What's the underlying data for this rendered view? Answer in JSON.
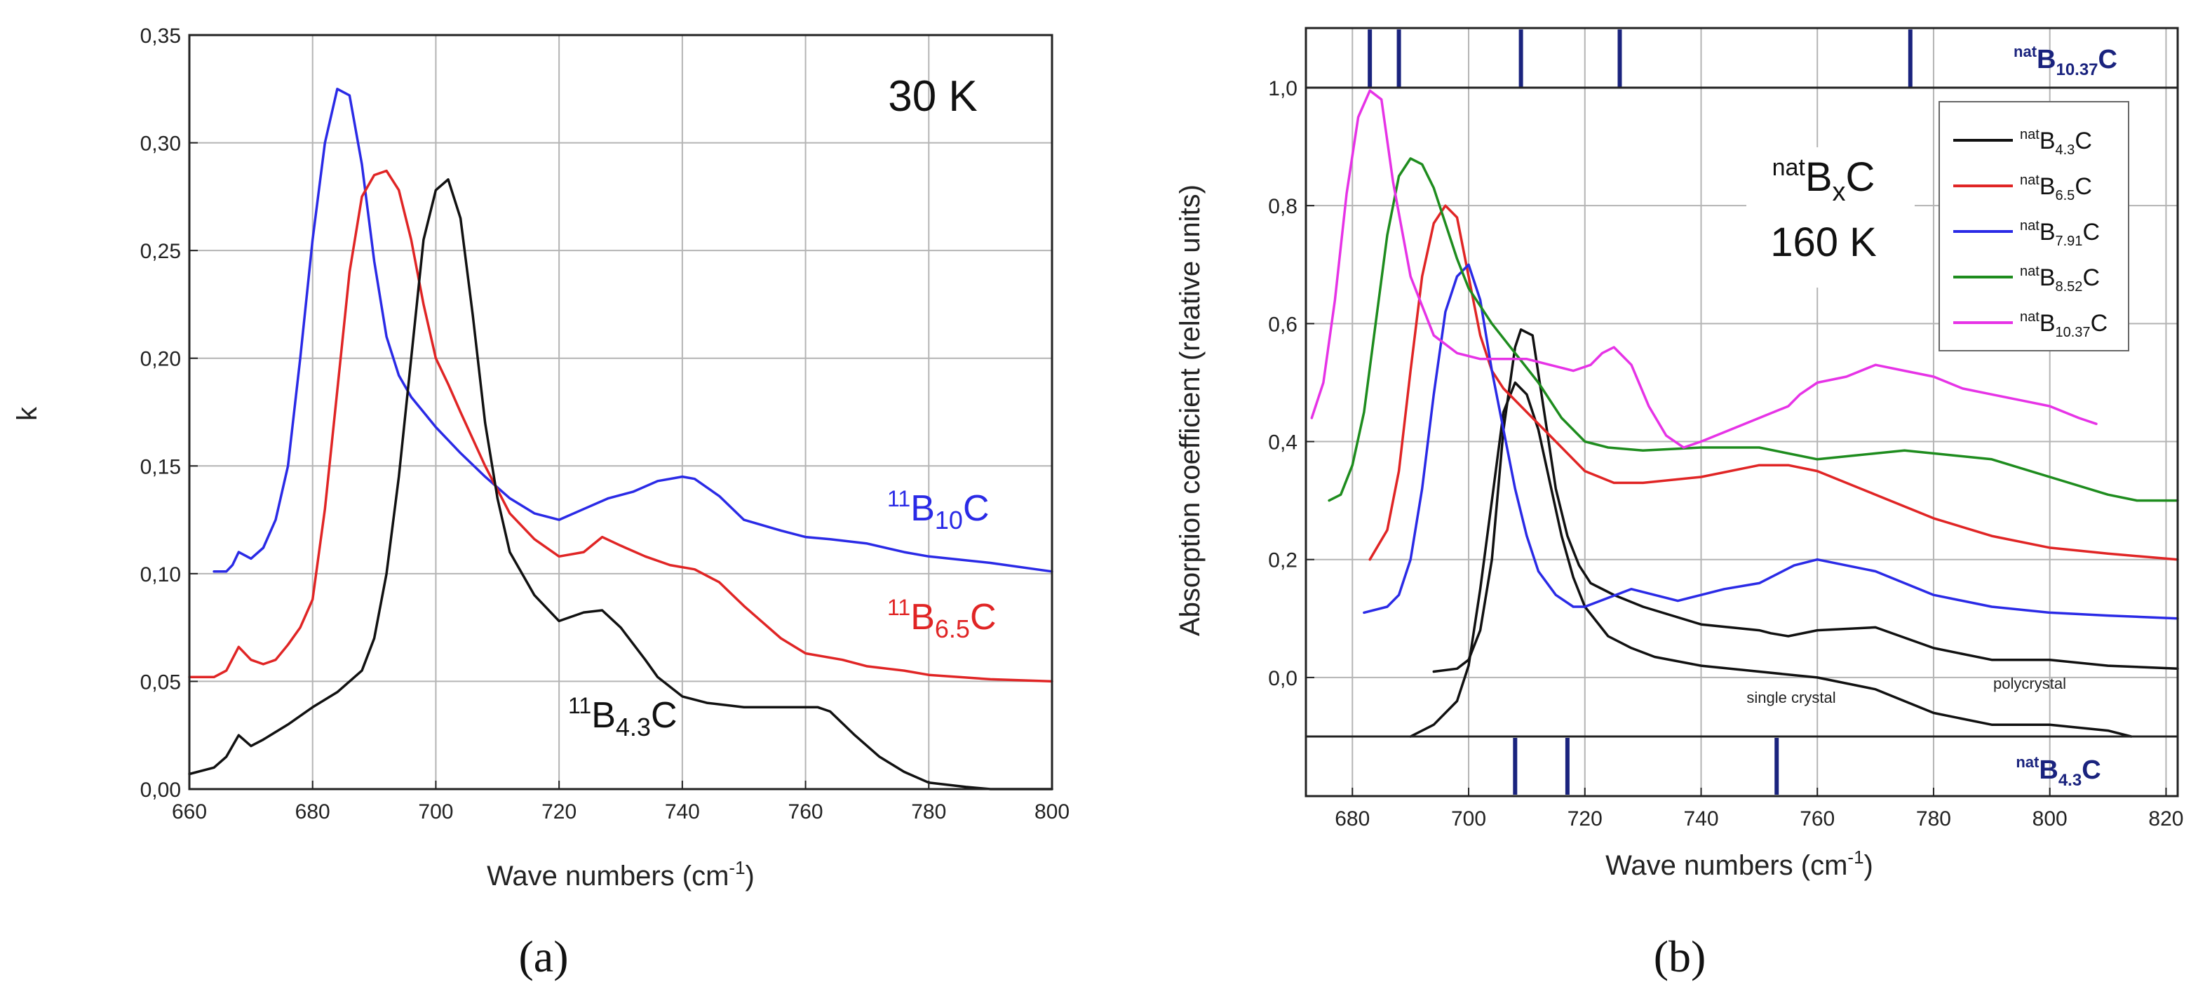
{
  "chart_data": [
    {
      "type": "line",
      "panel_label": "(a)",
      "annotation": "30 K",
      "xlabel": {
        "text": "Wave numbers (cm",
        "sup": "-1",
        "tail": ")"
      },
      "ylabel": "k",
      "xlim": [
        660,
        800
      ],
      "ylim": [
        0,
        0.35
      ],
      "xticks": [
        "660",
        "680",
        "700",
        "720",
        "740",
        "760",
        "780",
        "800"
      ],
      "yticks": [
        "0,00",
        "0,05",
        "0,10",
        "0,15",
        "0,20",
        "0,25",
        "0,30",
        "0,35"
      ],
      "grid": true,
      "series": [
        {
          "id": "b10c",
          "color": "#2a2ae6",
          "label": {
            "sup": "11",
            "base": "B",
            "sub": "10",
            "tail": "C"
          },
          "x": [
            664,
            666,
            667,
            668,
            670,
            672,
            674,
            676,
            678,
            680,
            682,
            684,
            686,
            688,
            690,
            692,
            694,
            696,
            698,
            700,
            704,
            708,
            712,
            716,
            720,
            724,
            728,
            732,
            736,
            740,
            742,
            746,
            750,
            756,
            760,
            764,
            770,
            776,
            780,
            790,
            800
          ],
          "y": [
            0.101,
            0.101,
            0.104,
            0.11,
            0.107,
            0.112,
            0.125,
            0.15,
            0.2,
            0.255,
            0.3,
            0.325,
            0.322,
            0.29,
            0.245,
            0.21,
            0.192,
            0.182,
            0.175,
            0.168,
            0.156,
            0.145,
            0.135,
            0.128,
            0.125,
            0.13,
            0.135,
            0.138,
            0.143,
            0.145,
            0.144,
            0.136,
            0.125,
            0.12,
            0.117,
            0.116,
            0.114,
            0.11,
            0.108,
            0.105,
            0.101
          ]
        },
        {
          "id": "b65c",
          "color": "#e02525",
          "label": {
            "sup": "11",
            "base": "B",
            "sub": "6.5",
            "tail": "C"
          },
          "x": [
            660,
            664,
            666,
            668,
            670,
            672,
            674,
            676,
            678,
            680,
            682,
            684,
            686,
            688,
            690,
            692,
            694,
            696,
            698,
            700,
            702,
            704,
            708,
            712,
            716,
            720,
            724,
            727,
            730,
            734,
            738,
            742,
            746,
            750,
            756,
            760,
            766,
            770,
            776,
            780,
            790,
            800
          ],
          "y": [
            0.052,
            0.052,
            0.055,
            0.066,
            0.06,
            0.058,
            0.06,
            0.067,
            0.075,
            0.088,
            0.13,
            0.185,
            0.24,
            0.275,
            0.285,
            0.287,
            0.278,
            0.255,
            0.225,
            0.2,
            0.188,
            0.175,
            0.15,
            0.128,
            0.116,
            0.108,
            0.11,
            0.117,
            0.113,
            0.108,
            0.104,
            0.102,
            0.096,
            0.085,
            0.07,
            0.063,
            0.06,
            0.057,
            0.055,
            0.053,
            0.051,
            0.05
          ]
        },
        {
          "id": "b43c",
          "color": "#111111",
          "label": {
            "sup": "11",
            "base": "B",
            "sub": "4.3",
            "tail": "C"
          },
          "x": [
            660,
            664,
            666,
            668,
            670,
            672,
            676,
            680,
            684,
            688,
            690,
            692,
            694,
            696,
            698,
            700,
            702,
            704,
            706,
            708,
            710,
            712,
            716,
            720,
            724,
            727,
            730,
            734,
            736,
            740,
            744,
            750,
            756,
            762,
            764,
            768,
            772,
            776,
            780,
            786,
            790,
            796,
            800
          ],
          "y": [
            0.007,
            0.01,
            0.015,
            0.025,
            0.02,
            0.023,
            0.03,
            0.038,
            0.045,
            0.055,
            0.07,
            0.1,
            0.145,
            0.2,
            0.255,
            0.278,
            0.283,
            0.265,
            0.22,
            0.17,
            0.135,
            0.11,
            0.09,
            0.078,
            0.082,
            0.083,
            0.075,
            0.06,
            0.052,
            0.043,
            0.04,
            0.038,
            0.038,
            0.038,
            0.036,
            0.025,
            0.015,
            0.008,
            0.003,
            0.001,
            0.0,
            0.0,
            0.0
          ]
        }
      ]
    },
    {
      "type": "line",
      "panel_label": "(b)",
      "annotation_line1": {
        "sup": "nat",
        "base": "B",
        "sub": "x",
        "tail": "C"
      },
      "annotation_line2": "160 K",
      "xlabel": {
        "text": "Wave numbers (cm",
        "sup": "-1",
        "tail": ")"
      },
      "ylabel": "Absorption coefficient (relative units)",
      "xlim": [
        672,
        822
      ],
      "ylim": [
        -0.1,
        1.0
      ],
      "xticks": [
        "680",
        "700",
        "720",
        "740",
        "760",
        "780",
        "800",
        "820"
      ],
      "yticks": [
        "0,0",
        "0,2",
        "0,4",
        "0,6",
        "0,8",
        "1,0"
      ],
      "grid": true,
      "legend_position": "top-right",
      "top_strip": {
        "label": {
          "sup": "nat",
          "base": "B",
          "sub": "10.37",
          "tail": "C"
        },
        "lines_x": [
          683,
          688,
          709,
          726,
          776
        ]
      },
      "bottom_strip": {
        "label": {
          "sup": "nat",
          "base": "B",
          "sub": "4.3",
          "tail": "C"
        },
        "lines_x": [
          708,
          717,
          753
        ]
      },
      "curve_annotations": [
        {
          "text": "single crystal",
          "x": 745,
          "y": -0.04
        },
        {
          "text": "polycrystal",
          "x": 790,
          "y": -0.02
        }
      ],
      "series": [
        {
          "id": "nb43c",
          "color": "#111111",
          "label": {
            "sup": "nat",
            "base": "B",
            "sub": "4.3",
            "tail": "C"
          },
          "x": [
            694,
            698,
            700,
            702,
            704,
            706,
            708,
            709,
            711,
            713,
            715,
            717,
            719,
            721,
            725,
            730,
            740,
            750,
            752,
            755,
            760,
            770,
            780,
            790,
            800,
            810,
            822
          ],
          "y": [
            0.01,
            0.015,
            0.03,
            0.08,
            0.2,
            0.42,
            0.56,
            0.59,
            0.58,
            0.45,
            0.32,
            0.24,
            0.19,
            0.16,
            0.14,
            0.12,
            0.09,
            0.08,
            0.075,
            0.07,
            0.08,
            0.085,
            0.05,
            0.03,
            0.03,
            0.02,
            0.015
          ]
        },
        {
          "id": "nb43c_sc",
          "color": "#111111",
          "legend": false,
          "x": [
            690,
            694,
            698,
            700,
            702,
            704,
            706,
            708,
            710,
            712,
            714,
            716,
            718,
            720,
            724,
            728,
            732,
            740,
            750,
            760,
            770,
            780,
            790,
            800,
            810,
            814
          ],
          "y": [
            -0.1,
            -0.08,
            -0.04,
            0.02,
            0.15,
            0.3,
            0.45,
            0.5,
            0.48,
            0.42,
            0.33,
            0.24,
            0.17,
            0.12,
            0.07,
            0.05,
            0.035,
            0.02,
            0.01,
            0.0,
            -0.02,
            -0.06,
            -0.08,
            -0.08,
            -0.09,
            -0.1
          ]
        },
        {
          "id": "nb65c",
          "color": "#e02525",
          "label": {
            "sup": "nat",
            "base": "B",
            "sub": "6.5",
            "tail": "C"
          },
          "x": [
            683,
            686,
            688,
            690,
            692,
            694,
            696,
            698,
            700,
            702,
            704,
            706,
            710,
            715,
            720,
            725,
            730,
            740,
            750,
            755,
            760,
            770,
            780,
            790,
            800,
            810,
            822
          ],
          "y": [
            0.2,
            0.25,
            0.35,
            0.52,
            0.68,
            0.77,
            0.8,
            0.78,
            0.68,
            0.58,
            0.52,
            0.49,
            0.45,
            0.4,
            0.35,
            0.33,
            0.33,
            0.34,
            0.36,
            0.36,
            0.35,
            0.31,
            0.27,
            0.24,
            0.22,
            0.21,
            0.2
          ]
        },
        {
          "id": "nb791c",
          "color": "#2a2ae6",
          "label": {
            "sup": "nat",
            "base": "B",
            "sub": "7.91",
            "tail": "C"
          },
          "x": [
            682,
            686,
            688,
            690,
            692,
            694,
            696,
            698,
            700,
            702,
            704,
            706,
            708,
            710,
            712,
            715,
            718,
            720,
            724,
            728,
            732,
            736,
            740,
            744,
            750,
            756,
            760,
            770,
            780,
            790,
            800,
            810,
            822
          ],
          "y": [
            0.11,
            0.12,
            0.14,
            0.2,
            0.32,
            0.48,
            0.62,
            0.68,
            0.7,
            0.64,
            0.52,
            0.42,
            0.32,
            0.24,
            0.18,
            0.14,
            0.12,
            0.12,
            0.135,
            0.15,
            0.14,
            0.13,
            0.14,
            0.15,
            0.16,
            0.19,
            0.2,
            0.18,
            0.14,
            0.12,
            0.11,
            0.105,
            0.1
          ]
        },
        {
          "id": "nb852c",
          "color": "#1e8c1e",
          "label": {
            "sup": "nat",
            "base": "B",
            "sub": "8.52",
            "tail": "C"
          },
          "x": [
            676,
            678,
            680,
            682,
            684,
            686,
            688,
            690,
            692,
            694,
            696,
            698,
            700,
            704,
            708,
            712,
            716,
            720,
            724,
            730,
            740,
            750,
            760,
            770,
            775,
            780,
            790,
            800,
            810,
            815,
            822
          ],
          "y": [
            0.3,
            0.31,
            0.36,
            0.45,
            0.6,
            0.75,
            0.85,
            0.88,
            0.87,
            0.83,
            0.77,
            0.71,
            0.66,
            0.6,
            0.55,
            0.5,
            0.44,
            0.4,
            0.39,
            0.385,
            0.39,
            0.39,
            0.37,
            0.38,
            0.385,
            0.38,
            0.37,
            0.34,
            0.31,
            0.3,
            0.3
          ]
        },
        {
          "id": "nb1037c",
          "color": "#e633e6",
          "label": {
            "sup": "nat",
            "base": "B",
            "sub": "10.37",
            "tail": "C"
          },
          "x": [
            673,
            675,
            677,
            679,
            681,
            683,
            685,
            687,
            690,
            694,
            698,
            702,
            706,
            710,
            714,
            718,
            721,
            723,
            725,
            728,
            731,
            734,
            737,
            740,
            745,
            750,
            755,
            757,
            760,
            765,
            770,
            775,
            780,
            785,
            790,
            795,
            800,
            805,
            808
          ],
          "y": [
            0.44,
            0.5,
            0.64,
            0.82,
            0.95,
            0.995,
            0.98,
            0.84,
            0.68,
            0.58,
            0.55,
            0.54,
            0.54,
            0.54,
            0.53,
            0.52,
            0.53,
            0.55,
            0.56,
            0.53,
            0.46,
            0.41,
            0.39,
            0.4,
            0.42,
            0.44,
            0.46,
            0.48,
            0.5,
            0.51,
            0.53,
            0.52,
            0.51,
            0.49,
            0.48,
            0.47,
            0.46,
            0.44,
            0.43
          ]
        }
      ]
    }
  ]
}
